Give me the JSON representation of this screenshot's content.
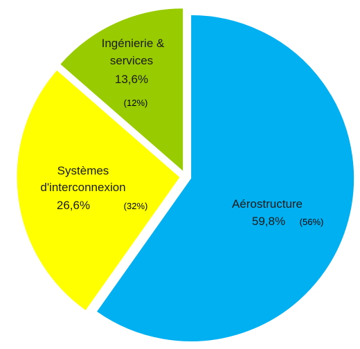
{
  "chart_data": {
    "type": "pie",
    "slices": [
      {
        "name_lines": [
          "Aérostructure"
        ],
        "value": 59.8,
        "value_label": "59,8%",
        "note_label": "(56%)",
        "color": "#00b0f0"
      },
      {
        "name_lines": [
          "Systèmes",
          "d'interconnexion"
        ],
        "value": 26.6,
        "value_label": "26,6%",
        "note_label": "(32%)",
        "color": "#ffff00"
      },
      {
        "name_lines": [
          "Ingénierie &",
          "services"
        ],
        "value": 13.6,
        "value_label": "13,6%",
        "note_label": "(12%)",
        "color": "#99cc00"
      }
    ],
    "start": "top",
    "direction": "clockwise",
    "exploded": true
  }
}
